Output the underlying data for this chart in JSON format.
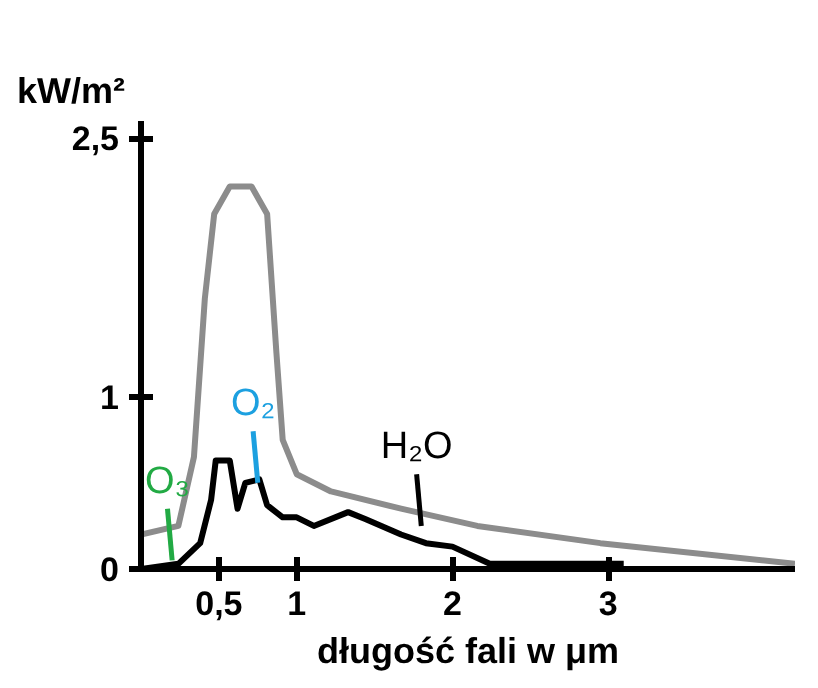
{
  "chart_data": {
    "type": "line",
    "xlabel": "długość fali w μm",
    "ylabel": "kW/m²",
    "series": [
      {
        "color": "#8c8c8c",
        "x": [
          0,
          0.24,
          0.34,
          0.41,
          0.47,
          0.57,
          0.71,
          0.81,
          0.87,
          0.91,
          1,
          1.22,
          1.67,
          2.16,
          2.95,
          4.2
        ],
        "values": [
          0.2,
          0.25,
          0.65,
          1.57,
          2.06,
          2.22,
          2.22,
          2.06,
          1.25,
          0.75,
          0.55,
          0.45,
          0.35,
          0.25,
          0.15,
          0.03
        ]
      },
      {
        "color": "#000000",
        "x": [
          0,
          0.24,
          0.38,
          0.45,
          0.48,
          0.57,
          0.62,
          0.67,
          0.76,
          0.81,
          0.91,
          1,
          1.11,
          1.33,
          1.44,
          1.67,
          1.83,
          2,
          2.24,
          2.4,
          2.63,
          3.1
        ],
        "values": [
          0,
          0.03,
          0.15,
          0.4,
          0.63,
          0.63,
          0.35,
          0.5,
          0.52,
          0.37,
          0.3,
          0.3,
          0.25,
          0.33,
          0.29,
          0.2,
          0.15,
          0.13,
          0.03,
          0.03,
          0.03,
          0.03
        ]
      }
    ],
    "annotations": [
      {
        "text": "O₃",
        "x": 0.2,
        "y": 0.05
      },
      {
        "text": "O₂",
        "x": 0.75,
        "y": 0.5
      },
      {
        "text": "H₂O",
        "x": 1.8,
        "y": 0.25
      }
    ],
    "xlim": [
      0,
      4.2
    ],
    "ylim": [
      0,
      2.6
    ],
    "xticks": [
      {
        "value": 0.5,
        "label": "0,5"
      },
      1,
      2,
      3
    ],
    "yticks": [
      0,
      1,
      {
        "value": 2.5,
        "label": "2,5"
      }
    ],
    "grid": false,
    "line_style": "solid",
    "marker": "none"
  }
}
